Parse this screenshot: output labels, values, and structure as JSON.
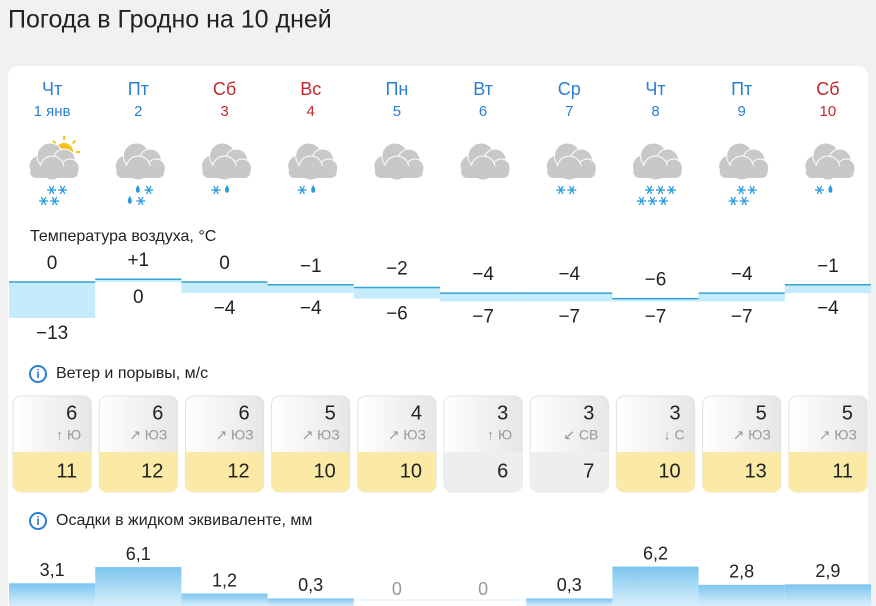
{
  "title": "Погода в Гродно на 10 дней",
  "days": [
    {
      "weekday": "Чт",
      "date": "1 янв",
      "color": "#2a7fd4"
    },
    {
      "weekday": "Пт",
      "date": "2",
      "color": "#2a7fd4"
    },
    {
      "weekday": "Сб",
      "date": "3",
      "color": "#c4262b"
    },
    {
      "weekday": "Вс",
      "date": "4",
      "color": "#c4262b"
    },
    {
      "weekday": "Пн",
      "date": "5",
      "color": "#2a7fd4"
    },
    {
      "weekday": "Вт",
      "date": "6",
      "color": "#2a7fd4"
    },
    {
      "weekday": "Ср",
      "date": "7",
      "color": "#2a7fd4"
    },
    {
      "weekday": "Чт",
      "date": "8",
      "color": "#2a7fd4"
    },
    {
      "weekday": "Пт",
      "date": "9",
      "color": "#2a7fd4"
    },
    {
      "weekday": "Сб",
      "date": "10",
      "color": "#c4262b"
    }
  ],
  "temperature": {
    "label": "Температура воздуха, °C",
    "max": {
      "values": [
        0,
        1,
        0,
        -1,
        -2,
        -4,
        -4,
        -6,
        -4,
        -1
      ],
      "value_labels": [
        "0",
        "+1",
        "0",
        "−1",
        "−2",
        "−4",
        "−4",
        "−6",
        "−4",
        "−1"
      ]
    },
    "min": {
      "values": [
        -13,
        0,
        -4,
        -4,
        -6,
        -7,
        -7,
        -7,
        -7,
        -4
      ],
      "value_labels": [
        "−13",
        "0",
        "−4",
        "−4",
        "−6",
        "−7",
        "−7",
        "−7",
        "−7",
        "−4"
      ]
    }
  },
  "wind": {
    "label": "Ветер и порывы, м/с",
    "speed": [
      6,
      6,
      6,
      5,
      4,
      3,
      3,
      3,
      5,
      5
    ],
    "direction": [
      "↑ Ю",
      "↗ ЮЗ",
      "↗ ЮЗ",
      "↗ ЮЗ",
      "↗ ЮЗ",
      "↑ Ю",
      "↙ СВ",
      "↓ С",
      "↗ ЮЗ",
      "↗ ЮЗ"
    ],
    "gusts": [
      11,
      12,
      12,
      10,
      10,
      6,
      7,
      10,
      13,
      11
    ],
    "gust_colors": [
      "#fbeaa6",
      "#fbeaa6",
      "#fbeaa6",
      "#fbeaa6",
      "#fbeaa6",
      "#eeeeee",
      "#eeeeee",
      "#fbeaa6",
      "#fbeaa6",
      "#fbeaa6"
    ]
  },
  "precipitation": {
    "label": "Осадки в жидком эквиваленте, мм",
    "values": [
      3.1,
      6.1,
      1.2,
      0.3,
      0,
      0,
      0.3,
      6.2,
      2.8,
      2.9
    ],
    "value_labels": [
      "3,1",
      "6,1",
      "1,2",
      "0,3",
      "0",
      "0",
      "0,3",
      "6,2",
      "2,8",
      "2,9"
    ]
  }
}
